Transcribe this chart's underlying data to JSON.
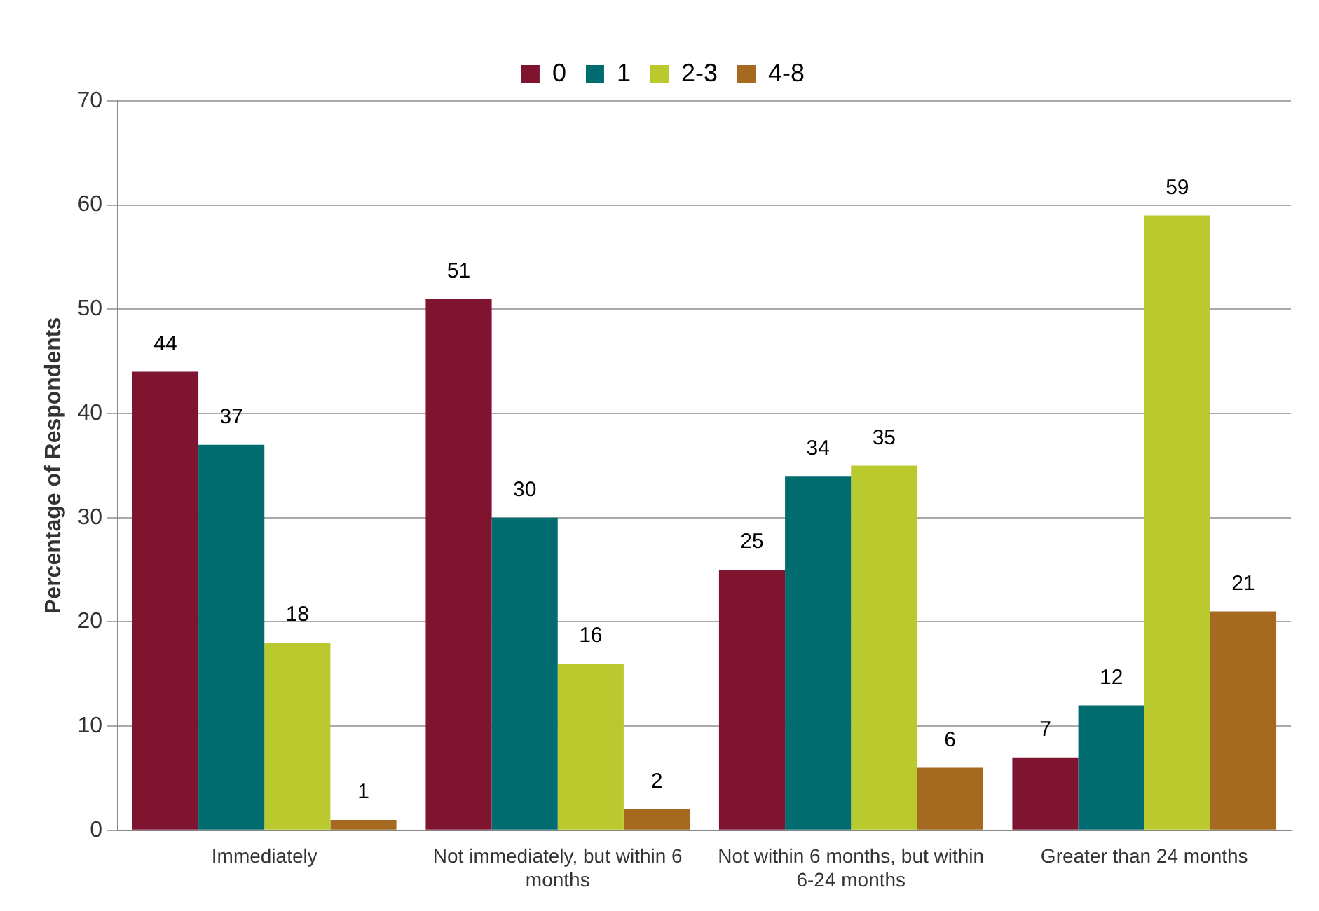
{
  "chart_data": {
    "type": "bar",
    "ylabel": "Percentage of Respondents",
    "categories": [
      "Immediately",
      "Not immediately, but within 6 months",
      "Not within 6 months, but within 6-24 months",
      "Greater than 24 months"
    ],
    "series": [
      {
        "name": "0",
        "color": "#7f1430",
        "values": [
          44,
          51,
          25,
          7
        ]
      },
      {
        "name": "1",
        "color": "#006c70",
        "values": [
          37,
          30,
          34,
          12
        ]
      },
      {
        "name": "2-3",
        "color": "#b9c92e",
        "values": [
          18,
          16,
          35,
          59
        ]
      },
      {
        "name": "4-8",
        "color": "#a5691f",
        "values": [
          1,
          2,
          6,
          21
        ]
      }
    ],
    "ylim": [
      0,
      70
    ],
    "yticks": [
      0,
      10,
      20,
      30,
      40,
      50,
      60,
      70
    ],
    "grid": "y",
    "legend": "top",
    "data_labels": true
  }
}
